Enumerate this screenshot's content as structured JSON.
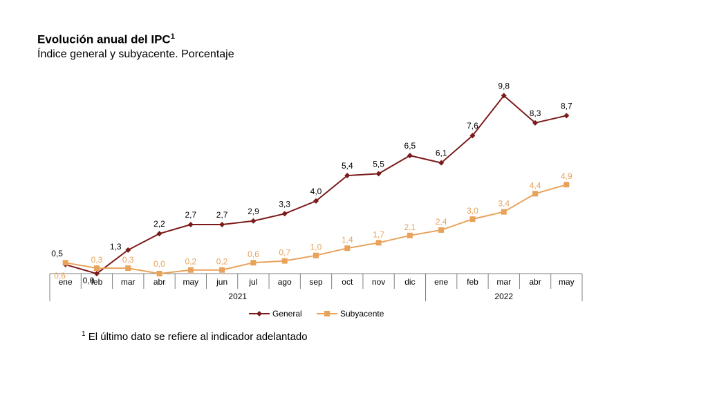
{
  "header": {
    "title": "Evolución anual del IPC",
    "title_sup": "1",
    "subtitle": "Índice general y subyacente. Porcentaje"
  },
  "footnote": {
    "marker": "1",
    "text": "El último dato se refiere al indicador adelantado"
  },
  "chart_data": {
    "type": "line",
    "categories": [
      "ene",
      "feb",
      "mar",
      "abr",
      "may",
      "jun",
      "jul",
      "ago",
      "sep",
      "oct",
      "nov",
      "dic",
      "ene",
      "feb",
      "mar",
      "abr",
      "may"
    ],
    "year_groups": [
      {
        "label": "2021",
        "start": 0,
        "end": 11
      },
      {
        "label": "2022",
        "start": 12,
        "end": 16
      }
    ],
    "ylim": [
      0,
      10.5
    ],
    "grid": false,
    "legend_position": "bottom",
    "series": [
      {
        "name": "General",
        "color": "#7b1a1a",
        "marker": "diamond",
        "values": [
          0.5,
          0.0,
          1.3,
          2.2,
          2.7,
          2.7,
          2.9,
          3.3,
          4.0,
          5.4,
          5.5,
          6.5,
          6.1,
          7.6,
          9.8,
          8.3,
          8.7
        ],
        "labels": [
          "0,5",
          "0,0",
          "1,3",
          "2,2",
          "2,7",
          "2,7",
          "2,9",
          "3,3",
          "4,0",
          "5,4",
          "5,5",
          "6,5",
          "6,1",
          "7,6",
          "9,8",
          "8,3",
          "8,7"
        ]
      },
      {
        "name": "Subyacente",
        "color": "#e8a25a",
        "marker": "square",
        "values": [
          0.6,
          0.3,
          0.3,
          0.0,
          0.2,
          0.2,
          0.6,
          0.7,
          1.0,
          1.4,
          1.7,
          2.1,
          2.4,
          3.0,
          3.4,
          4.4,
          4.9
        ],
        "labels": [
          "0,6",
          "0,3",
          "0,3",
          "0,0",
          "0,2",
          "0,2",
          "0,6",
          "0,7",
          "1,0",
          "1,4",
          "1,7",
          "2,1",
          "2,4",
          "3,0",
          "3,4",
          "4,4",
          "4,9"
        ]
      }
    ]
  }
}
